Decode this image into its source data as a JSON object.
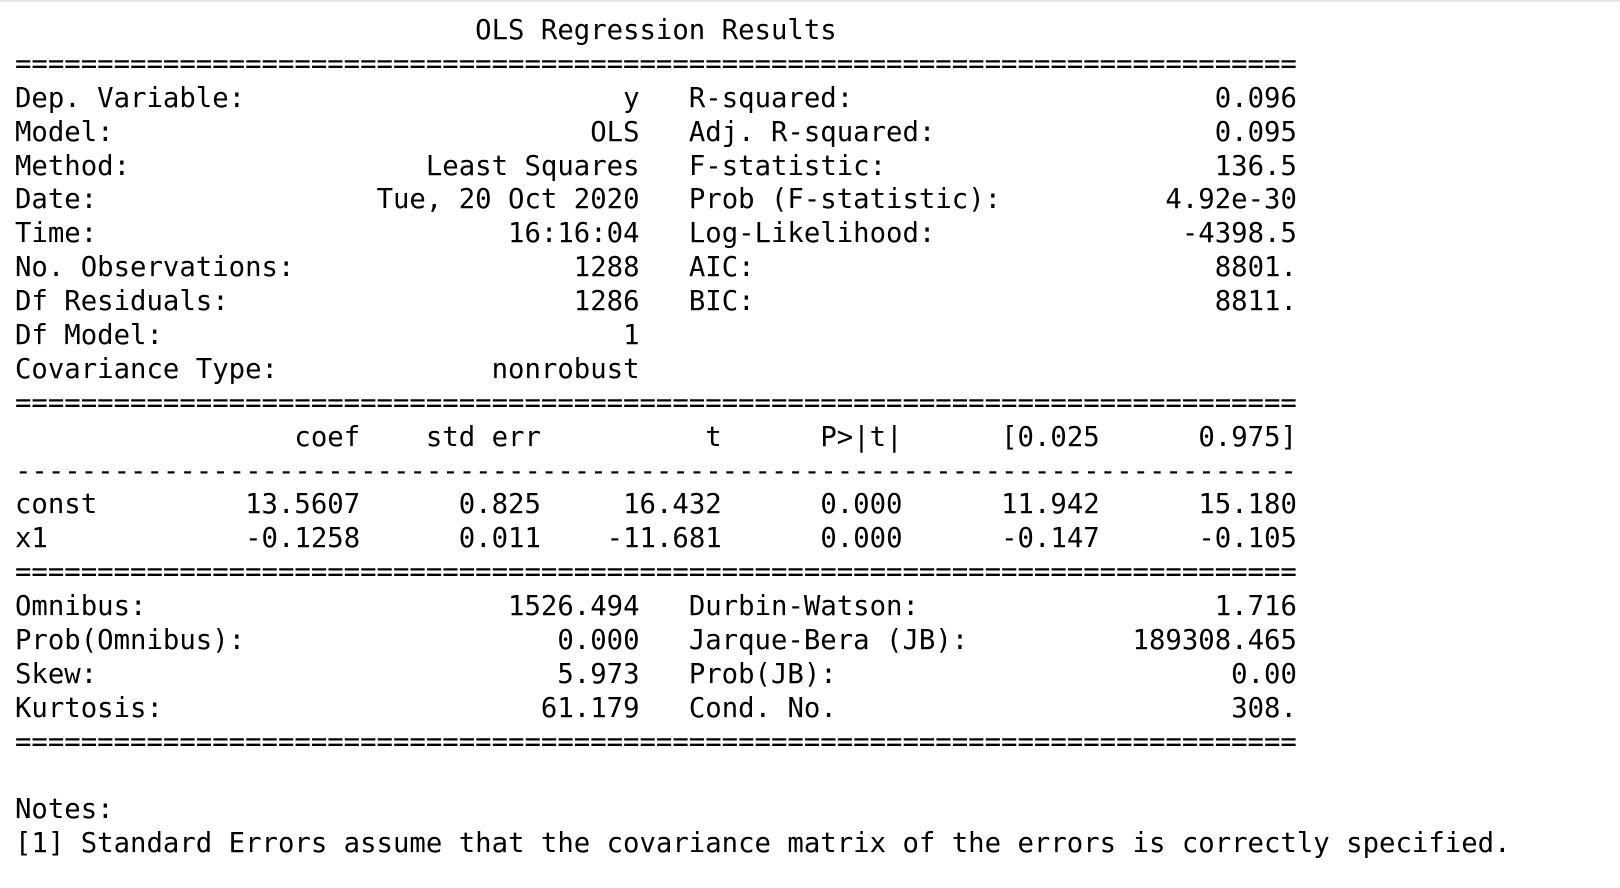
{
  "title": "OLS Regression Results",
  "separators": {
    "double": "==============================================================================",
    "single": "------------------------------------------------------------------------------"
  },
  "summary_rows": [
    {
      "left_label": "Dep. Variable:",
      "left_value": "y",
      "right_label": "R-squared:",
      "right_value": "0.096"
    },
    {
      "left_label": "Model:",
      "left_value": "OLS",
      "right_label": "Adj. R-squared:",
      "right_value": "0.095"
    },
    {
      "left_label": "Method:",
      "left_value": "Least Squares",
      "right_label": "F-statistic:",
      "right_value": "136.5"
    },
    {
      "left_label": "Date:",
      "left_value": "Tue, 20 Oct 2020",
      "right_label": "Prob (F-statistic):",
      "right_value": "4.92e-30"
    },
    {
      "left_label": "Time:",
      "left_value": "16:16:04",
      "right_label": "Log-Likelihood:",
      "right_value": "-4398.5"
    },
    {
      "left_label": "No. Observations:",
      "left_value": "1288",
      "right_label": "AIC:",
      "right_value": "8801."
    },
    {
      "left_label": "Df Residuals:",
      "left_value": "1286",
      "right_label": "BIC:",
      "right_value": "8811."
    },
    {
      "left_label": "Df Model:",
      "left_value": "1",
      "right_label": "",
      "right_value": ""
    },
    {
      "left_label": "Covariance Type:",
      "left_value": "nonrobust",
      "right_label": "",
      "right_value": ""
    }
  ],
  "coef_table": {
    "headers": [
      "coef",
      "std err",
      "t",
      "P>|t|",
      "[0.025",
      "0.975]"
    ],
    "rows": [
      {
        "name": "const",
        "coef": "13.5607",
        "std_err": "0.825",
        "t": "16.432",
        "p": "0.000",
        "ci_low": "11.942",
        "ci_high": "15.180"
      },
      {
        "name": "x1",
        "coef": "-0.1258",
        "std_err": "0.011",
        "t": "-11.681",
        "p": "0.000",
        "ci_low": "-0.147",
        "ci_high": "-0.105"
      }
    ]
  },
  "diagnostic_rows": [
    {
      "left_label": "Omnibus:",
      "left_value": "1526.494",
      "right_label": "Durbin-Watson:",
      "right_value": "1.716"
    },
    {
      "left_label": "Prob(Omnibus):",
      "left_value": "0.000",
      "right_label": "Jarque-Bera (JB):",
      "right_value": "189308.465"
    },
    {
      "left_label": "Skew:",
      "left_value": "5.973",
      "right_label": "Prob(JB):",
      "right_value": "0.00"
    },
    {
      "left_label": "Kurtosis:",
      "left_value": "61.179",
      "right_label": "Cond. No.",
      "right_value": "308."
    }
  ],
  "notes_heading": "Notes:",
  "notes": [
    "[1] Standard Errors assume that the covariance matrix of the errors is correctly specified."
  ]
}
